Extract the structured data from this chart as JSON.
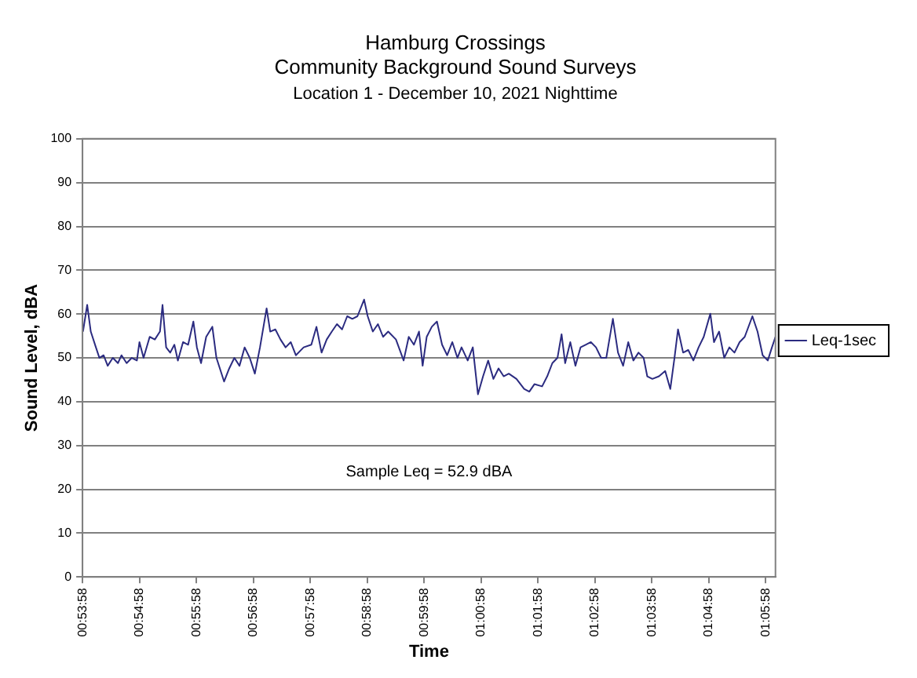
{
  "chart_data": {
    "type": "line",
    "title": "Hamburg Crossings",
    "subtitle": "Community Background Sound Surveys",
    "annotations": [
      "Location 1 - December 10, 2021 Nighttime",
      "Sample Leq = 52.9 dBA"
    ],
    "xlabel": "Time",
    "ylabel": "Sound Level, dBA",
    "xlim": [
      0.89944,
      1.10228
    ],
    "xticks": [
      {
        "value": 0.89944,
        "label": "00:53:58"
      },
      {
        "value": 0.91611,
        "label": "00:54:58"
      },
      {
        "value": 0.93278,
        "label": "00:55:58"
      },
      {
        "value": 0.94944,
        "label": "00:56:58"
      },
      {
        "value": 0.96611,
        "label": "00:57:58"
      },
      {
        "value": 0.98278,
        "label": "00:58:58"
      },
      {
        "value": 0.99944,
        "label": "00:59:58"
      },
      {
        "value": 1.01611,
        "label": "01:00:58"
      },
      {
        "value": 1.03278,
        "label": "01:01:58"
      },
      {
        "value": 1.04944,
        "label": "01:02:58"
      },
      {
        "value": 1.06611,
        "label": "01:03:58"
      },
      {
        "value": 1.08278,
        "label": "01:04:58"
      },
      {
        "value": 1.09944,
        "label": "01:05:58"
      }
    ],
    "ylim": [
      0,
      100
    ],
    "yticks": [
      0,
      10,
      20,
      30,
      40,
      50,
      60,
      70,
      80,
      90,
      100
    ],
    "grid": "y",
    "legend": "right",
    "marker": "none",
    "line_style": "solid",
    "series": [
      {
        "name": "Leq-1sec",
        "color": "#2b2b80",
        "x": [
          0.89958,
          0.90081,
          0.90186,
          0.90336,
          0.90439,
          0.90561,
          0.90681,
          0.90831,
          0.90981,
          0.91086,
          0.91236,
          0.91386,
          0.91536,
          0.91611,
          0.91731,
          0.91911,
          0.92061,
          0.92211,
          0.92286,
          0.92392,
          0.92511,
          0.92633,
          0.92736,
          0.92886,
          0.93036,
          0.93189,
          0.93292,
          0.93414,
          0.93564,
          0.93744,
          0.93864,
          0.94089,
          0.94239,
          0.94389,
          0.94539,
          0.94689,
          0.94839,
          0.94989,
          0.95139,
          0.95333,
          0.95439,
          0.95589,
          0.95739,
          0.95889,
          0.96039,
          0.96189,
          0.96417,
          0.96642,
          0.96792,
          0.96942,
          0.97092,
          0.97242,
          0.97392,
          0.97542,
          0.97692,
          0.97842,
          0.97992,
          0.98186,
          0.98292,
          0.98442,
          0.98592,
          0.98742,
          0.98892,
          0.99119,
          0.99344,
          0.99494,
          0.99644,
          0.99794,
          0.999,
          1.00019,
          1.00169,
          1.00319,
          1.00469,
          1.00619,
          1.00769,
          1.00919,
          1.01039,
          1.01219,
          1.01369,
          1.01519,
          1.01669,
          1.01819,
          1.01972,
          1.02122,
          1.02272,
          1.02422,
          1.02647,
          1.02872,
          1.03022,
          1.03172,
          1.03397,
          1.03547,
          1.03697,
          1.03847,
          1.03967,
          1.04072,
          1.04222,
          1.04372,
          1.04522,
          1.04672,
          1.04825,
          1.04975,
          1.05125,
          1.05275,
          1.05469,
          1.05619,
          1.05769,
          1.05919,
          1.06069,
          1.06219,
          1.06369,
          1.06475,
          1.06625,
          1.06819,
          1.07,
          1.0715,
          1.07272,
          1.07375,
          1.07525,
          1.07675,
          1.07825,
          1.07978,
          1.08128,
          1.08322,
          1.08428,
          1.08578,
          1.08728,
          1.08878,
          1.09028,
          1.09178,
          1.09328,
          1.09553,
          1.09703,
          1.09853,
          1.10003,
          1.10125,
          1.10228
        ],
        "values": [
          56.0,
          62.1,
          56.0,
          52.4,
          50.0,
          50.6,
          48.2,
          50.0,
          48.8,
          50.6,
          48.8,
          50.0,
          49.4,
          53.6,
          50.0,
          54.8,
          54.2,
          56.0,
          62.1,
          52.4,
          51.2,
          53.0,
          49.4,
          53.6,
          53.0,
          58.3,
          52.4,
          48.8,
          54.8,
          57.1,
          50.0,
          44.6,
          47.6,
          50.0,
          48.2,
          52.4,
          50.0,
          46.4,
          52.4,
          61.3,
          56.0,
          56.5,
          54.2,
          52.4,
          53.6,
          50.6,
          52.4,
          53.0,
          57.1,
          51.2,
          54.2,
          56.0,
          57.7,
          56.5,
          59.5,
          58.9,
          59.5,
          63.3,
          59.5,
          56.0,
          57.7,
          54.8,
          56.0,
          54.2,
          49.4,
          54.8,
          53.0,
          56.0,
          48.2,
          54.8,
          57.1,
          58.3,
          53.0,
          50.6,
          53.6,
          50.0,
          52.4,
          49.4,
          52.4,
          41.7,
          45.8,
          49.4,
          45.2,
          47.6,
          45.8,
          46.4,
          45.2,
          42.9,
          42.3,
          44.0,
          43.5,
          45.8,
          48.8,
          50.0,
          55.4,
          48.8,
          53.6,
          48.2,
          52.4,
          53.0,
          53.6,
          52.4,
          50.0,
          50.0,
          58.9,
          51.2,
          48.2,
          53.6,
          49.4,
          51.2,
          50.0,
          45.8,
          45.2,
          45.8,
          47.0,
          42.9,
          50.0,
          56.5,
          51.2,
          51.8,
          49.4,
          52.4,
          54.8,
          60.1,
          53.6,
          56.0,
          50.0,
          52.4,
          51.2,
          53.6,
          54.8,
          59.5,
          56.0,
          50.6,
          49.4,
          52.4,
          54.8
        ]
      }
    ]
  }
}
